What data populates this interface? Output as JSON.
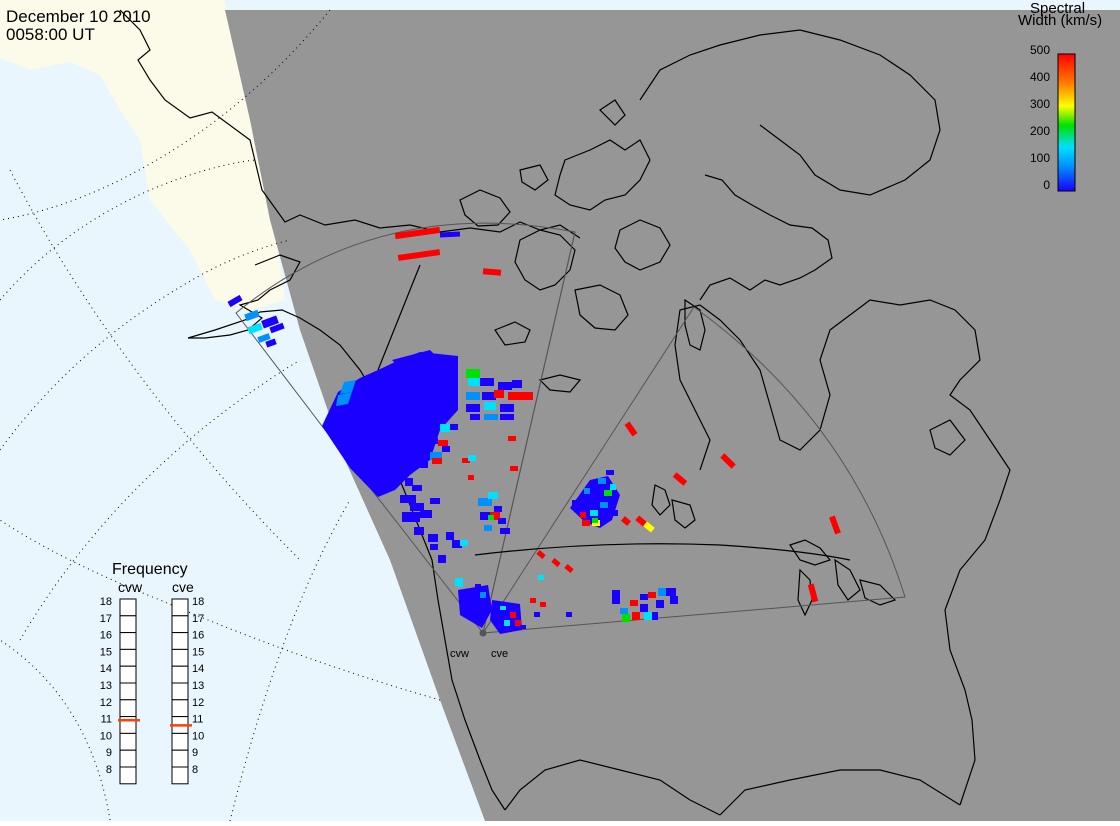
{
  "header": {
    "date": "December 10 2010",
    "time": "0058:00 UT"
  },
  "colorbar": {
    "title_line1": "Spectral",
    "title_line2": "Width (km/s)",
    "ticks": [
      "0",
      "100",
      "200",
      "300",
      "400",
      "500"
    ],
    "range": [
      0,
      500
    ],
    "colors": [
      "#1a00ff",
      "#0090ff",
      "#00e0ff",
      "#00e000",
      "#ffff00",
      "#ff8000",
      "#ff0000"
    ]
  },
  "frequency_panel": {
    "title": "Frequency",
    "radars": [
      "cvw",
      "cve"
    ],
    "scale_labels": [
      "18",
      "17",
      "16",
      "15",
      "14",
      "13",
      "12",
      "11",
      "10",
      "9",
      "8"
    ],
    "cvw_value": 10.9,
    "cve_value": 10.6,
    "marker_color": "#ff4000"
  },
  "map": {
    "night_color": "#969696",
    "day_sea_color": "#e9f6fd",
    "day_land_color": "#fcfbe9",
    "radar_labels": [
      "cvw",
      "cve"
    ]
  }
}
